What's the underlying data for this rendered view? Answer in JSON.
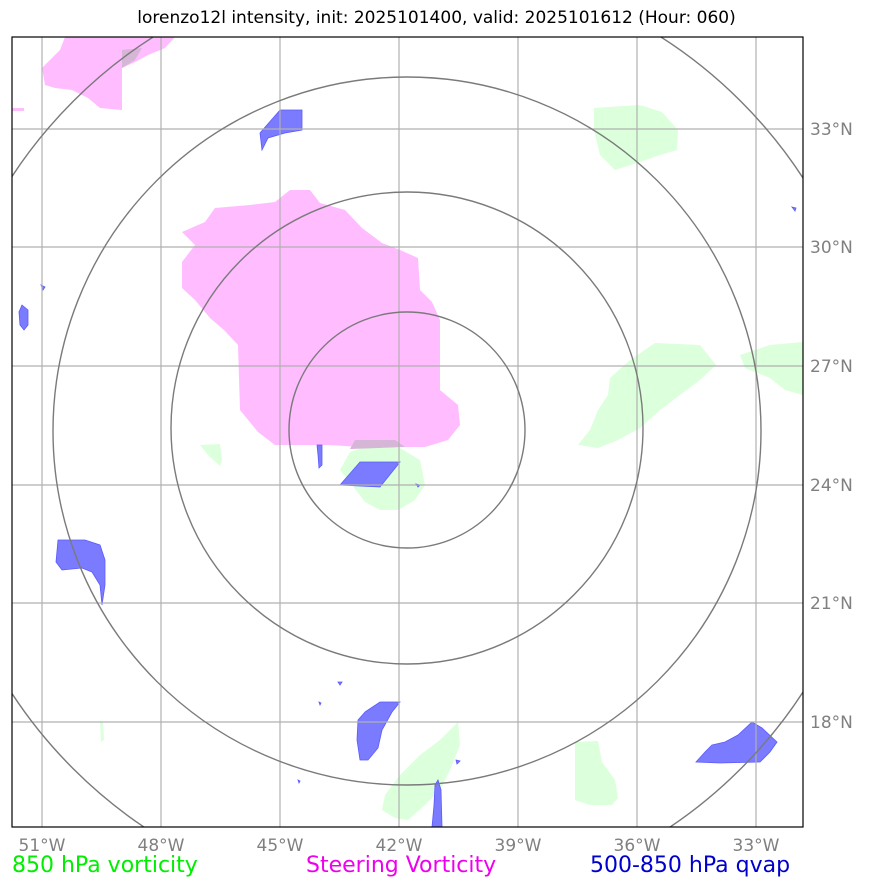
{
  "title": "lorenzo12l intensity, init: 2025101400, valid: 2025101612 (Hour: 060)",
  "map": {
    "lon_range": [
      -52,
      -32
    ],
    "lat_range": [
      15,
      35
    ],
    "lon_ticks": [
      "51°W",
      "48°W",
      "45°W",
      "42°W",
      "39°W",
      "36°W",
      "33°W"
    ],
    "lat_ticks": [
      "33°N",
      "30°N",
      "27°N",
      "24°N",
      "21°N",
      "18°N"
    ],
    "storm_center": {
      "lon": -41.8,
      "lat": 25.4
    },
    "range_rings": "concentric circles centered on storm",
    "gridlines": true,
    "tick_color": "#808080"
  },
  "legend": {
    "vorticity_850": {
      "label": "850 hPa vorticity",
      "color": "#00ee00"
    },
    "steering_vorticity": {
      "label": "Steering Vorticity",
      "color": "#ee00ee"
    },
    "qvap": {
      "label": "500-850 hPa qvap",
      "color": "#0000cc"
    }
  },
  "fill_colors": {
    "green": "#dcffdc",
    "pink": "#ffbcff",
    "blue": "#7b7bff",
    "overlap": "#d6b6d6"
  }
}
